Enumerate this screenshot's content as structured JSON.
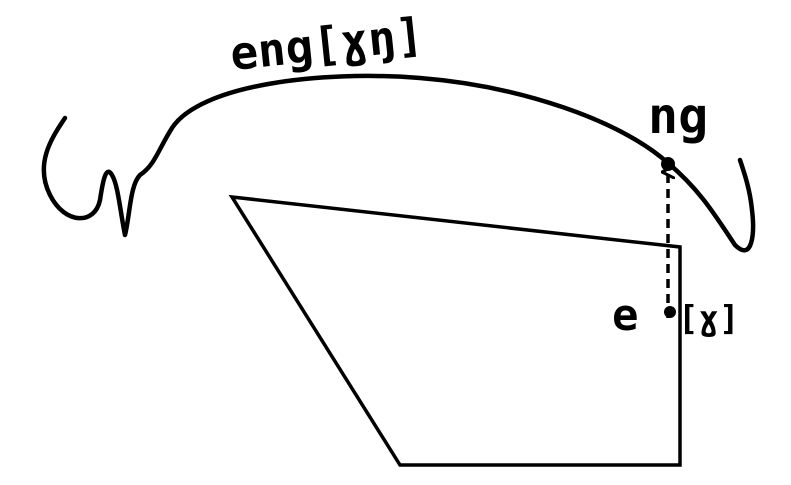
{
  "labels": {
    "curve_label": "eng[ɣŋ]",
    "endpoint_label": "ng",
    "lift_label_e": "e",
    "lift_label_gamma": "[ɣ]"
  },
  "colors": {
    "ink": "#000000",
    "background": "#ffffff"
  }
}
